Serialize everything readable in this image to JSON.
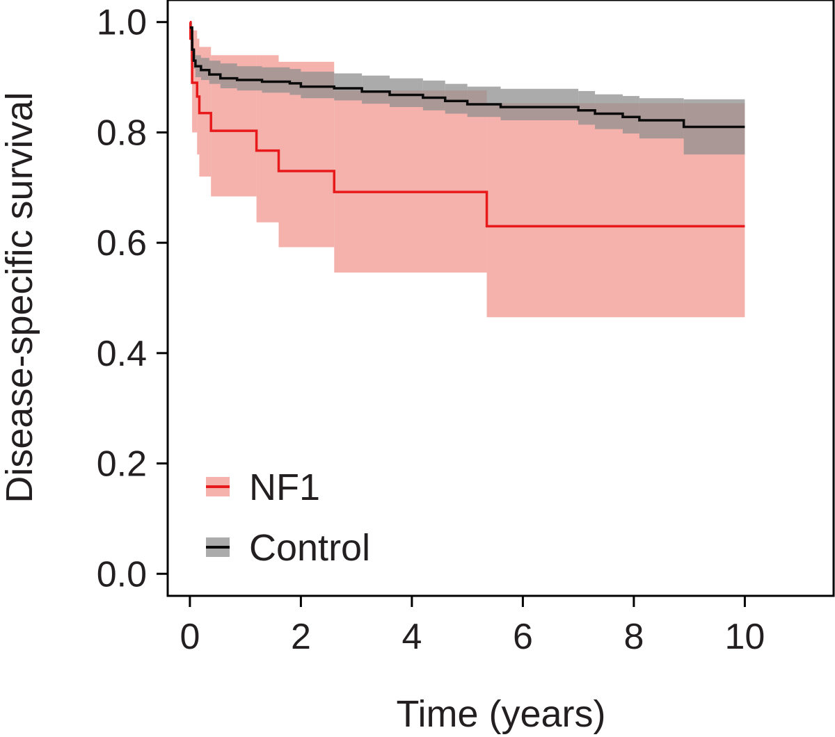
{
  "chart_data": {
    "type": "line",
    "subtype": "kaplan-meier",
    "title": "",
    "xlabel": "Time (years)",
    "ylabel": "Disease-specific survival",
    "xlim": [
      -0.4,
      11.6
    ],
    "ylim": [
      -0.04,
      1.04
    ],
    "x_ticks": [
      0,
      2,
      4,
      6,
      8,
      10
    ],
    "y_ticks": [
      0.0,
      0.2,
      0.4,
      0.6,
      0.8,
      1.0
    ],
    "x_tick_labels": [
      "0",
      "2",
      "4",
      "6",
      "8",
      "10"
    ],
    "y_tick_labels": [
      "0.0",
      "0.2",
      "0.4",
      "0.6",
      "0.8",
      "1.0"
    ],
    "grid": false,
    "legend": {
      "position": "bottom-left",
      "entries": [
        "NF1",
        "Control"
      ]
    },
    "series": [
      {
        "name": "NF1",
        "line_color": "#e8191b",
        "band_color": "#ee7e74",
        "band_opacity": 0.6,
        "steps": [
          {
            "x": 0.0,
            "y": 1.0,
            "lo": 1.0,
            "hi": 1.0
          },
          {
            "x": 0.01,
            "y": 0.97,
            "lo": 0.93,
            "hi": 1.0
          },
          {
            "x": 0.04,
            "y": 0.89,
            "lo": 0.8,
            "hi": 0.985
          },
          {
            "x": 0.13,
            "y": 0.865,
            "lo": 0.76,
            "hi": 0.97
          },
          {
            "x": 0.17,
            "y": 0.835,
            "lo": 0.72,
            "hi": 0.955
          },
          {
            "x": 0.38,
            "y": 0.803,
            "lo": 0.684,
            "hi": 0.94
          },
          {
            "x": 1.2,
            "y": 0.767,
            "lo": 0.637,
            "hi": 0.94
          },
          {
            "x": 1.6,
            "y": 0.73,
            "lo": 0.592,
            "hi": 0.928
          },
          {
            "x": 2.6,
            "y": 0.692,
            "lo": 0.546,
            "hi": 0.876
          },
          {
            "x": 5.35,
            "y": 0.63,
            "lo": 0.465,
            "hi": 0.853
          }
        ],
        "end_x": 10.0
      },
      {
        "name": "Control",
        "line_color": "#0a0a0a",
        "band_color": "#8f8f8f",
        "band_opacity": 0.75,
        "steps": [
          {
            "x": 0.0,
            "y": 0.99,
            "lo": 0.98,
            "hi": 1.0
          },
          {
            "x": 0.04,
            "y": 0.95,
            "lo": 0.935,
            "hi": 0.97
          },
          {
            "x": 0.07,
            "y": 0.93,
            "lo": 0.915,
            "hi": 0.95
          },
          {
            "x": 0.1,
            "y": 0.92,
            "lo": 0.9,
            "hi": 0.94
          },
          {
            "x": 0.2,
            "y": 0.913,
            "lo": 0.895,
            "hi": 0.935
          },
          {
            "x": 0.35,
            "y": 0.905,
            "lo": 0.888,
            "hi": 0.93
          },
          {
            "x": 0.55,
            "y": 0.898,
            "lo": 0.88,
            "hi": 0.925
          },
          {
            "x": 0.85,
            "y": 0.895,
            "lo": 0.876,
            "hi": 0.92
          },
          {
            "x": 1.3,
            "y": 0.892,
            "lo": 0.872,
            "hi": 0.918
          },
          {
            "x": 1.8,
            "y": 0.889,
            "lo": 0.868,
            "hi": 0.915
          },
          {
            "x": 2.0,
            "y": 0.883,
            "lo": 0.862,
            "hi": 0.91
          },
          {
            "x": 2.6,
            "y": 0.88,
            "lo": 0.858,
            "hi": 0.907
          },
          {
            "x": 3.1,
            "y": 0.874,
            "lo": 0.852,
            "hi": 0.903
          },
          {
            "x": 3.6,
            "y": 0.868,
            "lo": 0.846,
            "hi": 0.898
          },
          {
            "x": 4.2,
            "y": 0.863,
            "lo": 0.84,
            "hi": 0.894
          },
          {
            "x": 4.6,
            "y": 0.857,
            "lo": 0.834,
            "hi": 0.888
          },
          {
            "x": 5.0,
            "y": 0.851,
            "lo": 0.828,
            "hi": 0.883
          },
          {
            "x": 5.6,
            "y": 0.846,
            "lo": 0.822,
            "hi": 0.879
          },
          {
            "x": 7.0,
            "y": 0.84,
            "lo": 0.814,
            "hi": 0.875
          },
          {
            "x": 7.3,
            "y": 0.834,
            "lo": 0.806,
            "hi": 0.869
          },
          {
            "x": 7.8,
            "y": 0.828,
            "lo": 0.798,
            "hi": 0.866
          },
          {
            "x": 8.1,
            "y": 0.822,
            "lo": 0.789,
            "hi": 0.862
          },
          {
            "x": 8.9,
            "y": 0.81,
            "lo": 0.76,
            "hi": 0.86
          }
        ],
        "end_x": 10.0
      }
    ]
  }
}
